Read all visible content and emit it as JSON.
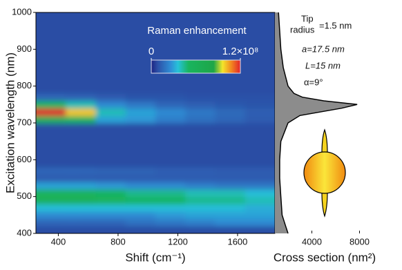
{
  "chart_data": [
    {
      "type": "heatmap",
      "x_label": "Shift (cm⁻¹)",
      "y_label": "Excitation wavelength (nm)",
      "xlim": [
        250,
        1850
      ],
      "xticks": [
        400,
        800,
        1200,
        1600
      ],
      "ylim": [
        400,
        1000
      ],
      "yticks": [
        400,
        500,
        600,
        700,
        800,
        900,
        1000
      ],
      "x": [
        350,
        550,
        750,
        950,
        1150,
        1350,
        1550,
        1750
      ],
      "y": [
        410,
        430,
        450,
        470,
        490,
        510,
        530,
        550,
        570,
        590,
        610,
        630,
        650,
        670,
        690,
        710,
        730,
        750,
        770,
        790,
        810,
        830,
        850,
        870,
        890,
        910,
        930,
        950,
        970,
        990
      ],
      "values": [
        [
          8000000.0,
          8000000.0,
          8000000.0,
          8000000.0,
          8000000.0,
          8000000.0,
          8000000.0,
          8000000.0
        ],
        [
          15000000.0,
          15000000.0,
          15000000.0,
          18000000.0,
          20000000.0,
          22000000.0,
          25000000.0,
          25000000.0
        ],
        [
          25000000.0,
          25000000.0,
          25000000.0,
          25000000.0,
          28000000.0,
          30000000.0,
          30000000.0,
          30000000.0
        ],
        [
          35000000.0,
          35000000.0,
          35000000.0,
          35000000.0,
          35000000.0,
          35000000.0,
          35000000.0,
          32000000.0
        ],
        [
          60000000.0,
          60000000.0,
          55000000.0,
          50000000.0,
          50000000.0,
          45000000.0,
          45000000.0,
          40000000.0
        ],
        [
          55000000.0,
          55000000.0,
          50000000.0,
          45000000.0,
          45000000.0,
          40000000.0,
          40000000.0,
          35000000.0
        ],
        [
          30000000.0,
          30000000.0,
          28000000.0,
          25000000.0,
          25000000.0,
          22000000.0,
          20000000.0,
          20000000.0
        ],
        [
          12000000.0,
          12000000.0,
          12000000.0,
          12000000.0,
          12000000.0,
          12000000.0,
          12000000.0,
          12000000.0
        ],
        [
          15000000.0,
          15000000.0,
          14000000.0,
          14000000.0,
          13000000.0,
          13000000.0,
          12000000.0,
          12000000.0
        ],
        [
          8000000.0,
          8000000.0,
          8000000.0,
          8000000.0,
          8000000.0,
          8000000.0,
          8000000.0,
          8000000.0
        ],
        [
          8000000.0,
          8000000.0,
          8000000.0,
          8000000.0,
          8000000.0,
          8000000.0,
          8000000.0,
          8000000.0
        ],
        [
          8000000.0,
          8000000.0,
          8000000.0,
          8000000.0,
          8000000.0,
          8000000.0,
          8000000.0,
          8000000.0
        ],
        [
          8000000.0,
          8000000.0,
          8000000.0,
          8000000.0,
          8000000.0,
          8000000.0,
          8000000.0,
          8000000.0
        ],
        [
          8000000.0,
          8000000.0,
          8000000.0,
          8000000.0,
          8000000.0,
          8000000.0,
          8000000.0,
          8000000.0
        ],
        [
          8000000.0,
          8000000.0,
          8000000.0,
          8000000.0,
          8000000.0,
          8000000.0,
          8000000.0,
          8000000.0
        ],
        [
          60000000.0,
          50000000.0,
          30000000.0,
          28000000.0,
          22000000.0,
          18000000.0,
          15000000.0,
          12000000.0
        ],
        [
          120000000.0,
          100000000.0,
          40000000.0,
          30000000.0,
          25000000.0,
          20000000.0,
          16000000.0,
          13000000.0
        ],
        [
          50000000.0,
          40000000.0,
          25000000.0,
          20000000.0,
          15000000.0,
          13000000.0,
          11000000.0,
          10000000.0
        ],
        [
          15000000.0,
          14000000.0,
          12000000.0,
          10000000.0,
          10000000.0,
          9000000.0,
          9000000.0,
          9000000.0
        ],
        [
          8000000.0,
          8000000.0,
          8000000.0,
          8000000.0,
          8000000.0,
          8000000.0,
          8000000.0,
          8000000.0
        ],
        [
          8000000.0,
          8000000.0,
          8000000.0,
          8000000.0,
          8000000.0,
          8000000.0,
          8000000.0,
          8000000.0
        ],
        [
          8000000.0,
          8000000.0,
          8000000.0,
          8000000.0,
          8000000.0,
          8000000.0,
          8000000.0,
          8000000.0
        ],
        [
          8000000.0,
          8000000.0,
          8000000.0,
          8000000.0,
          8000000.0,
          8000000.0,
          8000000.0,
          8000000.0
        ],
        [
          8000000.0,
          8000000.0,
          8000000.0,
          8000000.0,
          8000000.0,
          8000000.0,
          8000000.0,
          8000000.0
        ],
        [
          8000000.0,
          8000000.0,
          8000000.0,
          8000000.0,
          8000000.0,
          8000000.0,
          8000000.0,
          8000000.0
        ],
        [
          8000000.0,
          8000000.0,
          8000000.0,
          8000000.0,
          8000000.0,
          8000000.0,
          8000000.0,
          8000000.0
        ],
        [
          8000000.0,
          8000000.0,
          8000000.0,
          8000000.0,
          8000000.0,
          8000000.0,
          8000000.0,
          8000000.0
        ],
        [
          8000000.0,
          8000000.0,
          8000000.0,
          8000000.0,
          8000000.0,
          8000000.0,
          8000000.0,
          8000000.0
        ],
        [
          8000000.0,
          8000000.0,
          8000000.0,
          8000000.0,
          8000000.0,
          8000000.0,
          8000000.0,
          8000000.0
        ],
        [
          8000000.0,
          8000000.0,
          8000000.0,
          8000000.0,
          8000000.0,
          8000000.0,
          8000000.0,
          8000000.0
        ]
      ],
      "colorbar_title": "Raman enhancement",
      "zlim": [
        0,
        120000000.0
      ],
      "zticks": [
        0,
        {
          "value": 120000000.0,
          "label": "1.2×10⁸"
        }
      ],
      "colorscale": [
        [
          0,
          "#1c2382"
        ],
        [
          0.07,
          "#2c4fa6"
        ],
        [
          0.22,
          "#2f8fd6"
        ],
        [
          0.3,
          "#27c2d8"
        ],
        [
          0.42,
          "#19b45e"
        ],
        [
          0.7,
          "#1ea648"
        ],
        [
          0.8,
          "#f4e52a"
        ],
        [
          0.9,
          "#f2861f"
        ],
        [
          1,
          "#e2222a"
        ]
      ]
    },
    {
      "type": "area",
      "x_label": "Cross section (nm²)",
      "xlim": [
        900,
        8550
      ],
      "xticks": [
        4000,
        8000
      ],
      "ylim": [
        400,
        1000
      ],
      "color": "#8c8c8c",
      "y": [
        400,
        420,
        450,
        500,
        550,
        600,
        650,
        700,
        720,
        740,
        750,
        760,
        770,
        780,
        800,
        850,
        900,
        1000
      ],
      "values": [
        2000,
        1800,
        1500,
        1400,
        1300,
        1300,
        1400,
        2000,
        3000,
        6500,
        7800,
        5000,
        3200,
        2500,
        2000,
        1600,
        1400,
        1200
      ],
      "annotations": [
        "Tip",
        "radius",
        "=1.5 nm",
        "a=17.5 nm",
        "L=15 nm",
        "α=9°"
      ]
    }
  ]
}
